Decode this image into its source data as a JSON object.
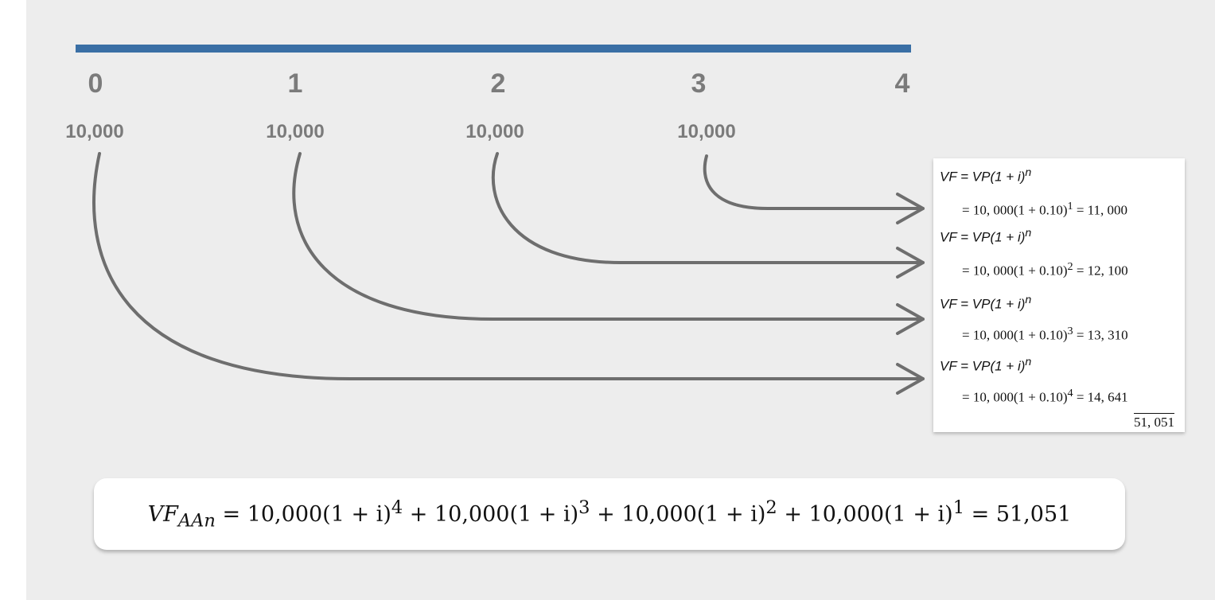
{
  "timeline": {
    "periods": [
      "0",
      "1",
      "2",
      "3",
      "4"
    ],
    "amounts": [
      "10,000",
      "10,000",
      "10,000",
      "10,000"
    ]
  },
  "formulas": {
    "vf_formula": "VF = VP(1 + i)",
    "vf_exponent": "n",
    "calc_1": "= 10, 000(1 + 0.10)",
    "exp_1": "1",
    "result_1": "= 11, 000",
    "calc_2": "= 10, 000(1 + 0.10)",
    "exp_2": "2",
    "result_2": "= 12, 100",
    "calc_3": "= 10, 000(1 + 0.10)",
    "exp_3": "3",
    "result_3": "= 13, 310",
    "calc_4": "= 10, 000(1 + 0.10)",
    "exp_4": "4",
    "result_4": "= 14, 641",
    "total": "51, 051"
  },
  "summary": {
    "lhs": "VF",
    "lhs_sub": "AAn",
    "term": "= 10,000(1 + i)",
    "term_plus": "+ 10,000(1 + i)",
    "exp_4": "4",
    "exp_3": "3",
    "exp_2": "2",
    "exp_1": "1",
    "result": "= 51,051"
  },
  "colors": {
    "timeline_bar": "#3a6fa5",
    "arrow": "#6e6e6e",
    "label_text": "#7b7b7b",
    "background": "#ededed"
  }
}
